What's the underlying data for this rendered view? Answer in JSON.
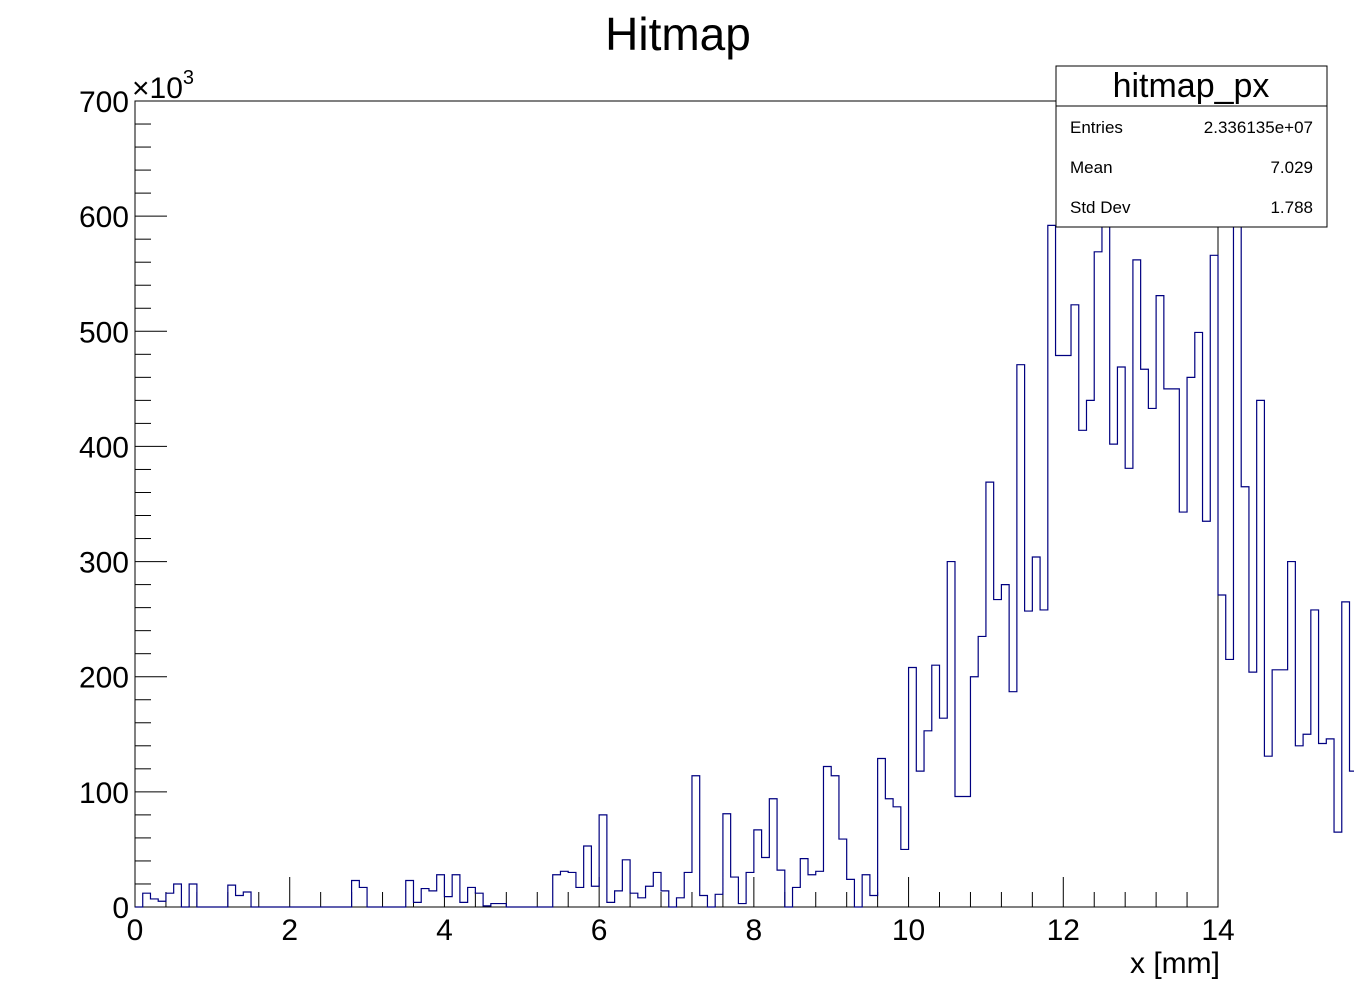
{
  "chart_data": {
    "type": "bar",
    "histogram": true,
    "title": "Hitmap",
    "xlabel": "x [mm]",
    "ylabel": "",
    "y_multiplier_label": "×10",
    "y_multiplier_exponent": "3",
    "xlim": [
      0,
      14
    ],
    "ylim": [
      0,
      700
    ],
    "x_ticks": [
      "0",
      "2",
      "4",
      "6",
      "8",
      "10",
      "12",
      "14"
    ],
    "y_ticks": [
      "0",
      "100",
      "200",
      "300",
      "400",
      "500",
      "600",
      "700"
    ],
    "bin_width": 0.1,
    "bins_start": 0,
    "series": [
      {
        "color": "#000080",
        "values": [
          0,
          12,
          7,
          5,
          12,
          20,
          0,
          20,
          0,
          0,
          0,
          0,
          19,
          10,
          13,
          0,
          0,
          0,
          0,
          0,
          0,
          0,
          0,
          0,
          0,
          0,
          0,
          0,
          23,
          17,
          0,
          0,
          0,
          0,
          0,
          23,
          4,
          16,
          14,
          28,
          9,
          28,
          4,
          17,
          12,
          1,
          3,
          3,
          0,
          0,
          0,
          0,
          0,
          0,
          28,
          31,
          30,
          17,
          53,
          18,
          80,
          4,
          14,
          41,
          12,
          8,
          18,
          30,
          14,
          0,
          8,
          30,
          114,
          10,
          0,
          11,
          81,
          26,
          3,
          30,
          67,
          43,
          94,
          32,
          0,
          17,
          42,
          28,
          31,
          122,
          114,
          59,
          24,
          0,
          28,
          10,
          129,
          94,
          87,
          50,
          208,
          118,
          153,
          210,
          164,
          300,
          96,
          96,
          200,
          235,
          369,
          267,
          280,
          187,
          471,
          257,
          304,
          258,
          592,
          479,
          479,
          523,
          414,
          440,
          569,
          671,
          402,
          469,
          381,
          562,
          467,
          433,
          531,
          450,
          450,
          343,
          460,
          499,
          335,
          566,
          271,
          215,
          623,
          365,
          204,
          440,
          131,
          206,
          206,
          300,
          140,
          150,
          258,
          142,
          146,
          65,
          265,
          118,
          4,
          12,
          0,
          0,
          0,
          0,
          0,
          0,
          0,
          0,
          0,
          0,
          0,
          0,
          0,
          0,
          0,
          0,
          0,
          0,
          0,
          0,
          0,
          0,
          0,
          0,
          0,
          0,
          0,
          0,
          0,
          0,
          0,
          0,
          0,
          0,
          0,
          0,
          0,
          0,
          0,
          0
        ]
      }
    ],
    "stats_box": {
      "title": "hitmap_px",
      "rows": [
        {
          "label": "Entries",
          "value": "2.336135e+07"
        },
        {
          "label": "Mean",
          "value": "7.029"
        },
        {
          "label": "Std Dev",
          "value": "1.788"
        }
      ]
    }
  }
}
